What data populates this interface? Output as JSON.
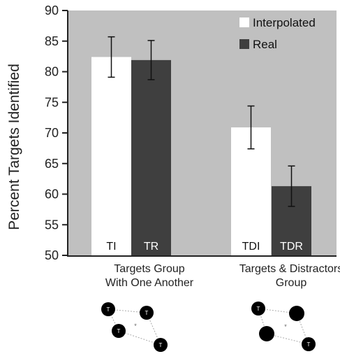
{
  "chart_data": {
    "type": "bar",
    "ylabel": "Percent Targets Identified",
    "ylim": [
      50,
      90
    ],
    "yticks": [
      "50",
      "55",
      "60",
      "65",
      "70",
      "75",
      "80",
      "85",
      "90"
    ],
    "categories": [
      {
        "lines": [
          "Targets Group",
          "With One Another"
        ]
      },
      {
        "lines": [
          "Targets & Distractors",
          "Group"
        ]
      }
    ],
    "series": [
      {
        "name": "Interpolated",
        "color": "#ffffff",
        "values": [
          82.4,
          70.9
        ],
        "errors": [
          3.3,
          3.5
        ],
        "bar_labels": [
          "TI",
          "TDI"
        ]
      },
      {
        "name": "Real",
        "color": "#3f3f3f",
        "values": [
          81.9,
          61.3
        ],
        "errors": [
          3.2,
          3.3
        ],
        "bar_labels": [
          "TR",
          "TDR"
        ]
      }
    ],
    "background_color": "#c0c0c0",
    "legend_position": "top-right",
    "grid": false
  },
  "diagrams": {
    "node_label": "T",
    "center_mark": "*"
  }
}
